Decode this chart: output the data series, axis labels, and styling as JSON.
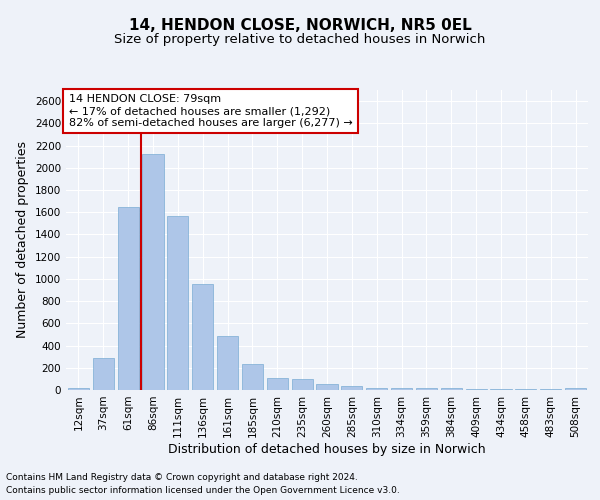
{
  "title": "14, HENDON CLOSE, NORWICH, NR5 0EL",
  "subtitle": "Size of property relative to detached houses in Norwich",
  "xlabel": "Distribution of detached houses by size in Norwich",
  "ylabel": "Number of detached properties",
  "categories": [
    "12sqm",
    "37sqm",
    "61sqm",
    "86sqm",
    "111sqm",
    "136sqm",
    "161sqm",
    "185sqm",
    "210sqm",
    "235sqm",
    "260sqm",
    "285sqm",
    "310sqm",
    "334sqm",
    "359sqm",
    "384sqm",
    "409sqm",
    "434sqm",
    "458sqm",
    "483sqm",
    "508sqm"
  ],
  "values": [
    15,
    285,
    1650,
    2120,
    1570,
    955,
    490,
    235,
    110,
    100,
    50,
    35,
    20,
    15,
    15,
    15,
    10,
    10,
    5,
    5,
    15
  ],
  "bar_color": "#aec6e8",
  "bar_edge_color": "#7badd4",
  "vline_x_pos": 2.5,
  "vline_color": "#cc0000",
  "annotation_text": "14 HENDON CLOSE: 79sqm\n← 17% of detached houses are smaller (1,292)\n82% of semi-detached houses are larger (6,277) →",
  "annotation_box_color": "#ffffff",
  "annotation_box_edge_color": "#cc0000",
  "ylim": [
    0,
    2700
  ],
  "yticks": [
    0,
    200,
    400,
    600,
    800,
    1000,
    1200,
    1400,
    1600,
    1800,
    2000,
    2200,
    2400,
    2600
  ],
  "footnote1": "Contains HM Land Registry data © Crown copyright and database right 2024.",
  "footnote2": "Contains public sector information licensed under the Open Government Licence v3.0.",
  "background_color": "#eef2f9",
  "grid_color": "#ffffff",
  "title_fontsize": 11,
  "subtitle_fontsize": 9.5,
  "axis_label_fontsize": 9,
  "tick_fontsize": 7.5,
  "annotation_fontsize": 8,
  "footnote_fontsize": 6.5
}
